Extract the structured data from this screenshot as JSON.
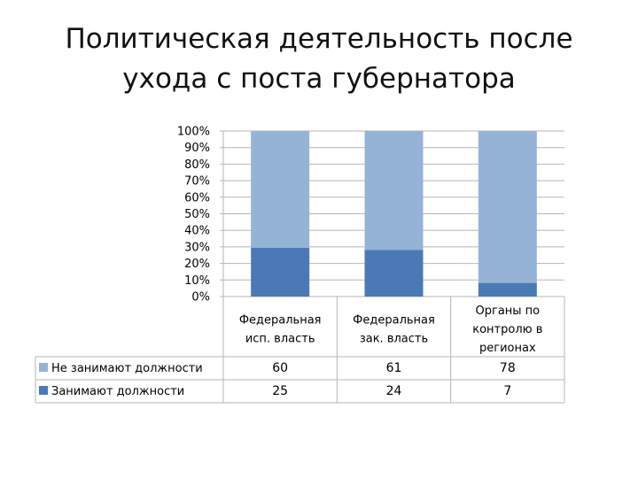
{
  "title": {
    "line1": "Политическая деятельность после",
    "line2": "ухода с поста губернатора"
  },
  "chart_data": {
    "type": "bar",
    "stacked": "percent",
    "categories": [
      [
        "Федеральная",
        "исп. власть"
      ],
      [
        "Федеральная",
        "зак. власть"
      ],
      [
        "Органы по",
        "контролю в",
        "регионах"
      ]
    ],
    "series": [
      {
        "name": "Не занимают должности",
        "values": [
          60,
          61,
          78
        ],
        "color": "#95b3d7"
      },
      {
        "name": "Занимают должности",
        "values": [
          25,
          24,
          7
        ],
        "color": "#4a7ab5"
      }
    ],
    "yticks": [
      "0%",
      "10%",
      "20%",
      "30%",
      "40%",
      "50%",
      "60%",
      "70%",
      "80%",
      "90%",
      "100%"
    ],
    "ylim": [
      0,
      100
    ],
    "grid": true,
    "data_table": true,
    "legend": "data-table-left"
  }
}
